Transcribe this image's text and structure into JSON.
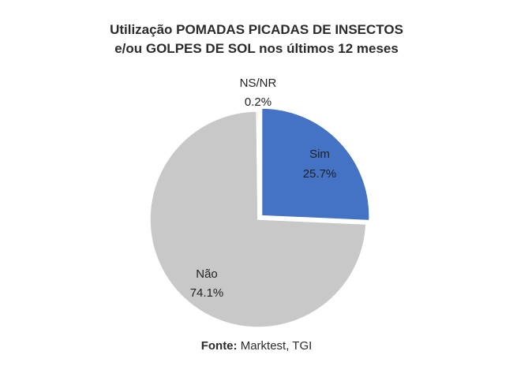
{
  "chart_data": {
    "type": "pie",
    "title_line1": "Utilização  POMADAS PICADAS DE INSECTOS",
    "title_line2": "e/ou GOLPES DE SOL nos últimos 12 meses",
    "slices": [
      {
        "label": "Sim",
        "value": 25.7,
        "value_label": "25.7%",
        "color": "#4472c4"
      },
      {
        "label": "Não",
        "value": 74.1,
        "value_label": "74.1%",
        "color": "#c8c8c8"
      },
      {
        "label": "NS/NR",
        "value": 0.2,
        "value_label": "0.2%",
        "color": "#ed7d31"
      }
    ],
    "source_label": "Fonte:",
    "source_text": "Marktest, TGI"
  }
}
